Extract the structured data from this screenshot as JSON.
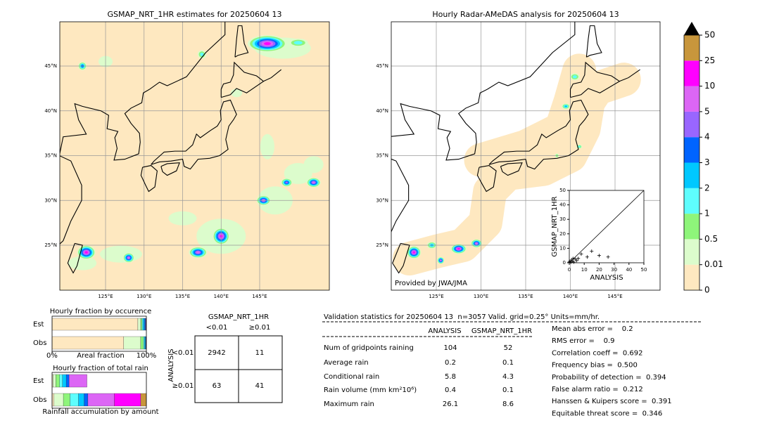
{
  "map_left": {
    "title": "GSMAP_NRT_1HR estimates for 20250604 13",
    "lat_labels": [
      "45°N",
      "40°N",
      "35°N",
      "30°N",
      "25°N"
    ],
    "lon_labels": [
      "125°E",
      "130°E",
      "135°E",
      "140°E",
      "145°E"
    ]
  },
  "map_right": {
    "title": "Hourly Radar-AMeDAS analysis for 20250604 13",
    "lat_labels": [
      "45°N",
      "40°N",
      "35°N",
      "30°N",
      "25°N"
    ],
    "lon_labels": [
      "125°E",
      "130°E",
      "135°E",
      "140°E",
      "145°E"
    ],
    "credit": "Provided by JWA/JMA"
  },
  "colorbar": {
    "ticks": [
      0,
      0.01,
      0.5,
      1,
      2,
      3,
      4,
      5,
      10,
      25,
      50
    ],
    "colors": [
      "#fee8c0",
      "#dcfccc",
      "#8ef57a",
      "#5efdfd",
      "#00c8ff",
      "#0064ff",
      "#9966ff",
      "#dc66f5",
      "#ff00ff",
      "#c8963c"
    ],
    "extend_color": "#000000"
  },
  "scatter": {
    "type": "scatter",
    "xlabel": "ANALYSIS",
    "ylabel": "GSMAP_NRT_1HR",
    "xlim": [
      0,
      50
    ],
    "ylim": [
      0,
      50
    ],
    "xticks": [
      0,
      10,
      20,
      30,
      40,
      50
    ],
    "yticks": [
      0,
      10,
      20,
      30,
      40,
      50
    ],
    "x": [
      0,
      0.5,
      1,
      1.5,
      2,
      2.5,
      3,
      4,
      5,
      6,
      8,
      12,
      15,
      20,
      26
    ],
    "y": [
      0.5,
      1,
      0.3,
      2,
      1,
      3,
      0.5,
      2.5,
      1.5,
      3,
      6,
      4,
      8,
      5,
      4
    ]
  },
  "occurrence": {
    "type": "bar",
    "title": "Hourly fraction by occurence",
    "categories": [
      "Est",
      "Obs"
    ],
    "xlim": [
      0,
      100
    ],
    "xticks": [
      {
        "value": 0,
        "label": "0%"
      },
      {
        "value": 100,
        "label": "100%"
      }
    ],
    "xlabel": "Areal fraction",
    "series": [
      {
        "color": "#fee8c0",
        "values": [
          91,
          76
        ]
      },
      {
        "color": "#dcfccc",
        "values": [
          3,
          18
        ]
      },
      {
        "color": "#8ef57a",
        "values": [
          1.5,
          3
        ]
      },
      {
        "color": "#5efdfd",
        "values": [
          1,
          1
        ]
      },
      {
        "color": "#00c8ff",
        "values": [
          1.5,
          1
        ]
      },
      {
        "color": "#0064ff",
        "values": [
          1,
          0.5
        ]
      },
      {
        "color": "#9966ff",
        "values": [
          0.5,
          0.5
        ]
      },
      {
        "color": "#dc66f5",
        "values": [
          0.5,
          0
        ]
      }
    ]
  },
  "total_rain": {
    "type": "bar",
    "title": "Hourly fraction of total rain",
    "categories": [
      "Est",
      "Obs"
    ],
    "xlim": [
      0,
      100
    ],
    "xlabel": "Rainfall accumulation by amount",
    "series": [
      {
        "color": "#fee8c0",
        "values": [
          1,
          2
        ]
      },
      {
        "color": "#dcfccc",
        "values": [
          3,
          10
        ]
      },
      {
        "color": "#8ef57a",
        "values": [
          4,
          7
        ]
      },
      {
        "color": "#5efdfd",
        "values": [
          3,
          9
        ]
      },
      {
        "color": "#00c8ff",
        "values": [
          4,
          6
        ]
      },
      {
        "color": "#0064ff",
        "values": [
          3,
          4
        ]
      },
      {
        "color": "#dc66f5",
        "values": [
          19,
          28
        ]
      },
      {
        "color": "#ff00ff",
        "values": [
          0,
          28
        ]
      },
      {
        "color": "#c8963c",
        "values": [
          0,
          6
        ]
      }
    ]
  },
  "contingency": {
    "title": "GSMAP_NRT_1HR",
    "columns": [
      "<0.01",
      "≥0.01"
    ],
    "row_title": "ANALYSIS",
    "rows": [
      "<0.01",
      "≥0.01"
    ],
    "cells": [
      [
        2942,
        11
      ],
      [
        63,
        41
      ]
    ]
  },
  "validation": {
    "title": "Validation statistics for 20250604 13  n=3057 Valid. grid=0.25° Units=mm/hr.",
    "columns": [
      "ANALYSIS",
      "GSMAP_NRT_1HR"
    ],
    "rows": [
      {
        "label": "Num of gridpoints raining",
        "values": [
          104,
          52
        ]
      },
      {
        "label": "Average rain",
        "values": [
          0.2,
          0.1
        ]
      },
      {
        "label": "Conditional rain",
        "values": [
          5.8,
          4.3
        ]
      },
      {
        "label": "Rain volume (mm km²10⁶)",
        "values": [
          0.4,
          0.1
        ]
      },
      {
        "label": "Maximum rain",
        "values": [
          26.1,
          8.6
        ]
      }
    ],
    "scores": [
      "Mean abs error =    0.2",
      "RMS error =    0.9",
      "Correlation coeff =  0.692",
      "Frequency bias =  0.500",
      "Probability of detection =  0.394",
      "False alarm ratio =  0.212",
      "Hanssen & Kuipers score =  0.391",
      "Equitable threat score =  0.346"
    ]
  }
}
